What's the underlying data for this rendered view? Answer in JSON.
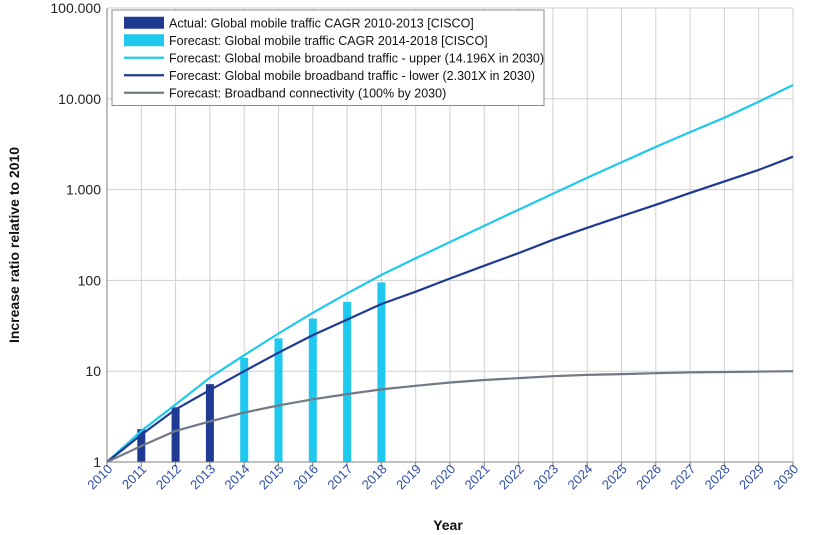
{
  "chart_data": {
    "type": "bar",
    "title": "",
    "xlabel": "Year",
    "ylabel": "Increase ratio relative to 2010",
    "yscale": "log",
    "ylim": [
      1,
      100000
    ],
    "y_ticks": [
      {
        "value": 1,
        "label": "1"
      },
      {
        "value": 10,
        "label": "10"
      },
      {
        "value": 100,
        "label": "100"
      },
      {
        "value": 1000,
        "label": "1.000"
      },
      {
        "value": 10000,
        "label": "10.000"
      },
      {
        "value": 100000,
        "label": "100.000"
      }
    ],
    "x": [
      2010,
      2011,
      2012,
      2013,
      2014,
      2015,
      2016,
      2017,
      2018,
      2019,
      2020,
      2021,
      2022,
      2023,
      2024,
      2025,
      2026,
      2027,
      2028,
      2029,
      2030
    ],
    "x_labels": [
      "2010",
      "2011",
      "2012",
      "2013",
      "2014",
      "2015",
      "2016",
      "2017",
      "2018",
      "2019",
      "2020",
      "2021",
      "2022",
      "2023",
      "2024",
      "2025",
      "2026",
      "2027",
      "2028",
      "2029",
      "2030"
    ],
    "grid": true,
    "legend_position": "top-left",
    "colors": {
      "actual_bar": "#1f3a93",
      "forecast_bar": "#1ec8ef",
      "upper_line": "#1ec8ef",
      "lower_line": "#1f3a93",
      "connectivity_line": "#707a86",
      "tick_label_year": "#2d4fa8"
    },
    "series": [
      {
        "name": "Actual: Global mobile traffic CAGR 2010-2013 [CISCO]",
        "kind": "bar",
        "color": "#1f3a93",
        "x": [
          2011,
          2012,
          2013
        ],
        "values": [
          2.3,
          4.0,
          7.2
        ]
      },
      {
        "name": "Forecast: Global mobile traffic CAGR 2014-2018 [CISCO]",
        "kind": "bar",
        "color": "#1ec8ef",
        "x": [
          2014,
          2015,
          2016,
          2017,
          2018
        ],
        "values": [
          14,
          23,
          38,
          58,
          95
        ]
      },
      {
        "name": "Forecast: Global mobile broadband traffic - upper (14.196X in 2030)",
        "kind": "line",
        "color": "#1ec8ef",
        "x": [
          2010,
          2011,
          2012,
          2013,
          2014,
          2015,
          2016,
          2017,
          2018,
          2019,
          2020,
          2021,
          2022,
          2023,
          2024,
          2025,
          2026,
          2027,
          2028,
          2029,
          2030
        ],
        "values": [
          1,
          2.2,
          4.3,
          8.5,
          15,
          26,
          44,
          72,
          115,
          175,
          265,
          400,
          600,
          900,
          1350,
          2000,
          2950,
          4300,
          6200,
          9300,
          14196
        ]
      },
      {
        "name": "Forecast: Global mobile broadband traffic - lower (2.301X in 2030)",
        "kind": "line",
        "color": "#1f3a93",
        "x": [
          2010,
          2011,
          2012,
          2013,
          2014,
          2015,
          2016,
          2017,
          2018,
          2019,
          2020,
          2021,
          2022,
          2023,
          2024,
          2025,
          2026,
          2027,
          2028,
          2029,
          2030
        ],
        "values": [
          1,
          2.0,
          3.8,
          6.2,
          10,
          16,
          25,
          37,
          55,
          75,
          105,
          145,
          200,
          280,
          380,
          510,
          680,
          920,
          1230,
          1650,
          2301
        ]
      },
      {
        "name": "Forecast: Broadband connectivity (100% by 2030)",
        "kind": "line",
        "color": "#707a86",
        "x": [
          2010,
          2011,
          2012,
          2013,
          2014,
          2015,
          2016,
          2017,
          2018,
          2019,
          2020,
          2021,
          2022,
          2023,
          2024,
          2025,
          2026,
          2027,
          2028,
          2029,
          2030
        ],
        "values": [
          1,
          1.5,
          2.2,
          2.8,
          3.5,
          4.2,
          4.9,
          5.6,
          6.3,
          6.9,
          7.5,
          8.0,
          8.4,
          8.8,
          9.1,
          9.3,
          9.5,
          9.7,
          9.8,
          9.9,
          10
        ]
      }
    ]
  }
}
